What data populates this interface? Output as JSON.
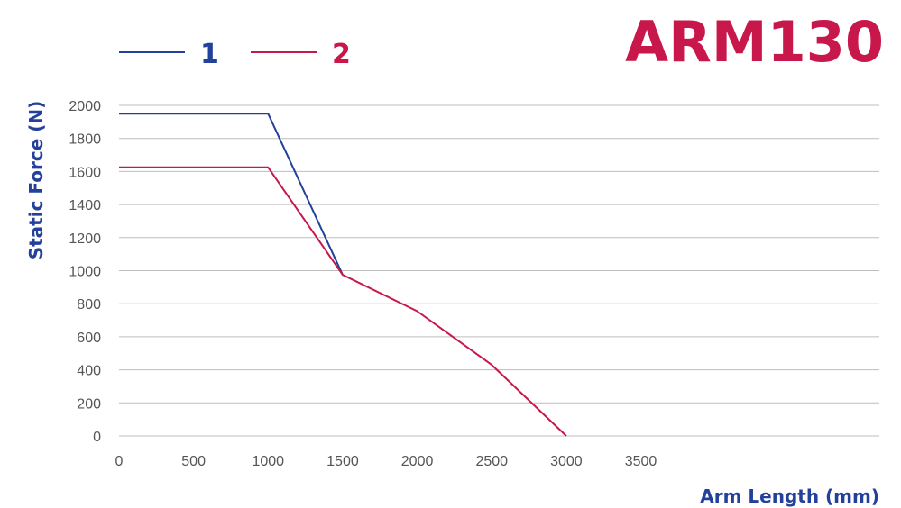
{
  "chart_data": {
    "type": "line",
    "title": "ARM130",
    "xlabel": "Arm Length (mm)",
    "ylabel": "Static Force (N)",
    "xlim": [
      0,
      5100
    ],
    "ylim": [
      0,
      2000
    ],
    "xticks": [
      0,
      500,
      1000,
      1500,
      2000,
      2500,
      3000,
      3500
    ],
    "yticks": [
      0,
      200,
      400,
      600,
      800,
      1000,
      1200,
      1400,
      1600,
      1800,
      2000
    ],
    "grid": "horizontal",
    "legend": "top-left",
    "series": [
      {
        "name": "1",
        "color": "#23409a",
        "x": [
          0,
          1000,
          1500
        ],
        "y": [
          1950,
          1950,
          975
        ]
      },
      {
        "name": "2",
        "color": "#c8174a",
        "x": [
          0,
          1000,
          1500,
          2000,
          2500,
          3000
        ],
        "y": [
          1625,
          1625,
          975,
          755,
          430,
          0
        ]
      }
    ]
  }
}
